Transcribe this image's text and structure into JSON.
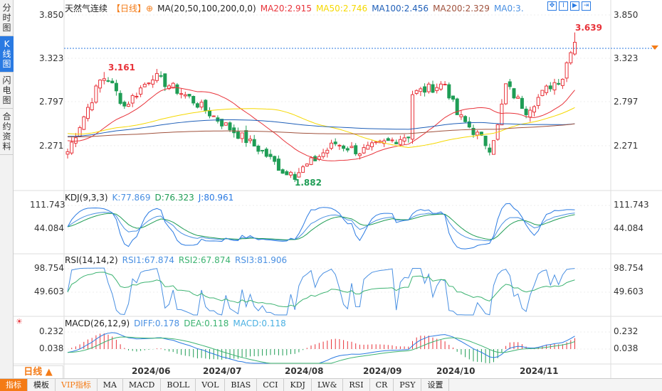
{
  "sidebar": {
    "tabs": [
      "分时图",
      "K线图",
      "闪电图",
      "合约资料"
    ],
    "active": 1
  },
  "header": {
    "symbol": "天然气连续",
    "period_tag": "【日线】",
    "ma_label": "MA(20,50,100,200,0,0)",
    "ma20": "MA20:2.915",
    "ma50": "MA50:2.746",
    "ma100": "MA100:2.456",
    "ma200": "MA200:2.329",
    "ma0": "MA0:3."
  },
  "main_axis": [
    "3.850",
    "3.323",
    "2.797",
    "2.271"
  ],
  "annotations": {
    "high1": "3.161",
    "low": "1.882",
    "high2": "3.639"
  },
  "kdj": {
    "title": "KDJ(9,3,3)",
    "k": "K:77.869",
    "d": "D:76.323",
    "j": "J:80.961",
    "axis": [
      "111.743",
      "44.084"
    ]
  },
  "rsi": {
    "title": "RSI(14,14,2)",
    "rsi1": "RSI1:67.874",
    "rsi2": "RSI2:67.874",
    "rsi3": "RSI3:81.906",
    "axis": [
      "98.754",
      "49.603"
    ]
  },
  "macd": {
    "title": "MACD(26,12,9)",
    "diff": "DIFF:0.178",
    "dea": "DEA:0.118",
    "macd": "MACD:0.118",
    "axis": [
      "0.232",
      "0.038"
    ]
  },
  "period_button": "日线 ▲",
  "dates": [
    "2024/06",
    "2024/07",
    "2024/08",
    "2024/09",
    "2024/10",
    "2024/11"
  ],
  "bottom_tabs": [
    "指标",
    "模板",
    "VIP指标",
    "MA",
    "MACD",
    "BOLL",
    "VOL",
    "BIAS",
    "CCI",
    "KDJ",
    "LW&",
    "RSI",
    "CR",
    "PSY",
    "设置"
  ],
  "colors": {
    "up": "#e8333a",
    "down": "#1f9d55",
    "ma20": "#e8333a",
    "ma50": "#f5d800",
    "ma100": "#1f5fb8",
    "ma200": "#a0523d",
    "accent": "#f47b16"
  },
  "price_keypoints": [
    [
      0,
      2.2
    ],
    [
      9,
      3.16
    ],
    [
      14,
      2.75
    ],
    [
      21,
      3.12
    ],
    [
      30,
      2.85
    ],
    [
      38,
      2.55
    ],
    [
      48,
      2.2
    ],
    [
      55,
      1.88
    ],
    [
      66,
      2.3
    ],
    [
      72,
      2.2
    ],
    [
      84,
      2.4
    ],
    [
      85,
      2.9
    ],
    [
      93,
      3.02
    ],
    [
      96,
      2.65
    ],
    [
      104,
      2.25
    ],
    [
      106,
      2.5
    ],
    [
      108,
      3.0
    ],
    [
      113,
      2.7
    ],
    [
      119,
      3.0
    ],
    [
      122,
      3.1
    ],
    [
      125,
      3.62
    ]
  ]
}
